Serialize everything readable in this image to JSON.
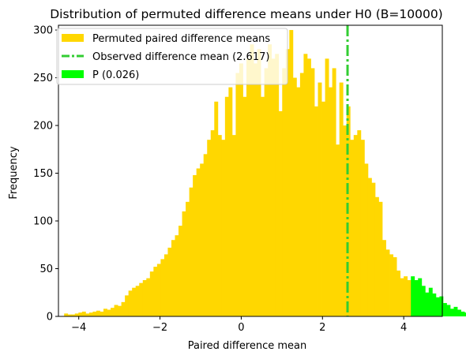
{
  "chart_data": {
    "type": "bar",
    "title": "Distribution of permuted difference means under H0 (B=10000)",
    "xlabel": "Paired difference mean",
    "ylabel": "Frequency",
    "xlim": [
      -4.5,
      4.95
    ],
    "ylim": [
      0,
      305
    ],
    "xticks": [
      -4,
      -2,
      0,
      2,
      4
    ],
    "yticks": [
      0,
      50,
      100,
      150,
      200,
      250,
      300
    ],
    "bin_start": -4.36,
    "bin_width": 0.088,
    "observed": 2.617,
    "observed_label": "Observed difference mean (2.617)",
    "p_value_label": "P (0.026)",
    "series": [
      {
        "name": "Permuted paired difference means",
        "color": "#FFD700",
        "values": [
          3,
          2,
          2,
          3,
          4,
          5,
          3,
          4,
          5,
          6,
          5,
          8,
          7,
          9,
          12,
          11,
          15,
          22,
          27,
          30,
          32,
          35,
          38,
          40,
          47,
          52,
          55,
          60,
          65,
          72,
          80,
          85,
          95,
          110,
          120,
          135,
          148,
          155,
          160,
          170,
          185,
          195,
          225,
          190,
          185,
          230,
          240,
          190,
          255,
          265,
          230,
          270,
          285,
          265,
          280,
          230,
          260,
          285,
          270,
          275,
          215,
          260,
          280,
          300,
          250,
          240,
          255,
          275,
          270,
          260,
          220,
          245,
          225,
          270,
          240,
          260,
          180,
          245,
          200,
          220,
          185,
          190,
          195,
          185,
          160,
          145,
          140,
          125,
          120,
          80,
          70,
          65,
          62,
          48,
          40,
          42,
          38
        ]
      },
      {
        "name": "P (0.026)",
        "color": "#00FF00",
        "values": [
          42,
          38,
          40,
          32,
          25,
          30,
          24,
          20,
          21,
          14,
          12,
          8,
          10,
          7,
          5,
          4,
          3,
          2,
          1,
          2,
          3
        ]
      }
    ],
    "legend": {
      "location": "top-left",
      "entries": [
        {
          "label": "Permuted paired difference means",
          "color": "#FFD700",
          "kind": "patch"
        },
        {
          "label": "Observed difference mean (2.617)",
          "color": "#32CD32",
          "kind": "dashdot-line"
        },
        {
          "label": "P (0.026)",
          "color": "#00FF00",
          "kind": "patch"
        }
      ]
    },
    "grid": false
  }
}
